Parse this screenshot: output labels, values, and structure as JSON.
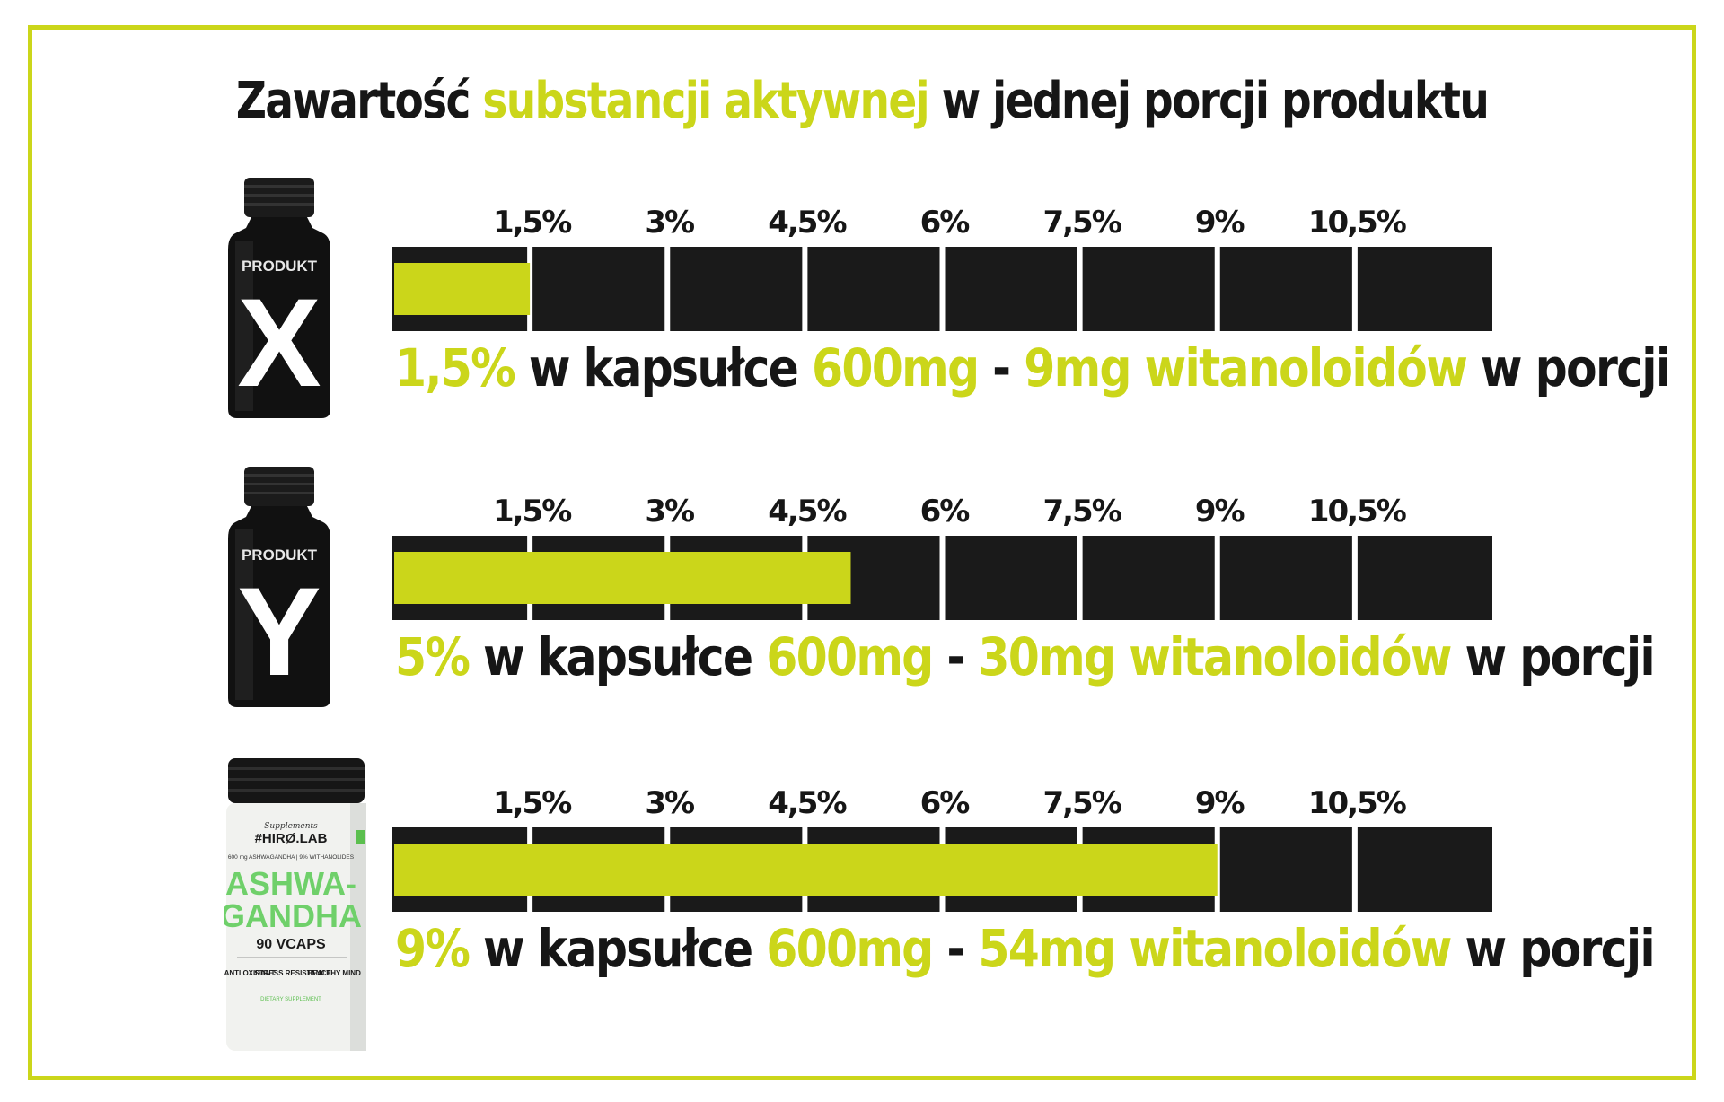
{
  "title": {
    "part1": "Zawartość",
    "part2": "substancji aktywnej",
    "part3": "w jednej porcji produktu"
  },
  "colors": {
    "accent": "#cbd61a",
    "bar_bg": "#1a1a1a",
    "text": "#161616"
  },
  "chart_data": {
    "type": "bar",
    "title": "Zawartość substancji aktywnej w jednej porcji produktu",
    "ticks": [
      "1,5%",
      "3%",
      "4,5%",
      "6%",
      "7,5%",
      "9%",
      "10,5%"
    ],
    "scale_max": 12,
    "products": [
      {
        "bottle_label": "PRODUKT",
        "bottle_letter": "X",
        "value_percent": 1.5,
        "caption": {
          "percent": "1,5%",
          "t1": "w kapsułce",
          "mass": "600mg",
          "dash": "-",
          "amount": "9mg witanoloidów",
          "t2": "w porcji"
        }
      },
      {
        "bottle_label": "PRODUKT",
        "bottle_letter": "Y",
        "value_percent": 5,
        "caption": {
          "percent": "5%",
          "t1": "w kapsułce",
          "mass": "600mg",
          "dash": "-",
          "amount": "30mg witanoloidów",
          "t2": "w porcji"
        }
      },
      {
        "bottle_brand_small": "Supplements",
        "bottle_brand": "#HIRØ.LAB",
        "bottle_sub": "600 mg ASHWAGANDHA | 9% WITHANOLIDES",
        "bottle_name_1": "ASHWA-",
        "bottle_name_2": "GANDHA",
        "bottle_count": "90 VCAPS",
        "bottle_tags": [
          "ANTI OXIDANT",
          "STRESS RESISTANCE",
          "HEALTHY MIND"
        ],
        "bottle_footer": "DIETARY SUPPLEMENT",
        "value_percent": 9,
        "caption": {
          "percent": "9%",
          "t1": "w kapsułce",
          "mass": "600mg",
          "dash": "-",
          "amount": "54mg witanoloidów",
          "t2": "w porcji"
        }
      }
    ]
  }
}
